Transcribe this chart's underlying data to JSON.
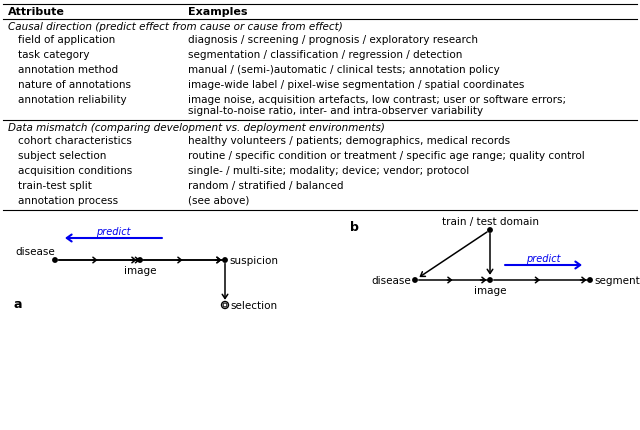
{
  "table_header": [
    "Attribute",
    "Examples"
  ],
  "section1_header": "Causal direction (predict effect from cause or cause from effect)",
  "section1_rows": [
    [
      "field of application",
      "diagnosis / screening / prognosis / exploratory research"
    ],
    [
      "task category",
      "segmentation / classification / regression / detection"
    ],
    [
      "annotation method",
      "manual / (semi-)automatic / clinical tests; annotation policy"
    ],
    [
      "nature of annotations",
      "image-wide label / pixel-wise segmentation / spatial coordinates"
    ],
    [
      "annotation reliability",
      "image noise, acquisition artefacts, low contrast; user or software errors;\nsignal-to-noise ratio, inter- and intra-observer variability"
    ]
  ],
  "section2_header": "Data mismatch (comparing development vs. deployment environments)",
  "section2_rows": [
    [
      "cohort characteristics",
      "healthy volunteers / patients; demographics, medical records"
    ],
    [
      "subject selection",
      "routine / specific condition or treatment / specific age range; quality control"
    ],
    [
      "acquisition conditions",
      "single- / multi-site; modality; device; vendor; protocol"
    ],
    [
      "train-test split",
      "random / stratified / balanced"
    ],
    [
      "annotation process",
      "(see above)"
    ]
  ],
  "bg_color": "#ffffff",
  "text_color": "#000000",
  "predict_color": "#0000ee"
}
